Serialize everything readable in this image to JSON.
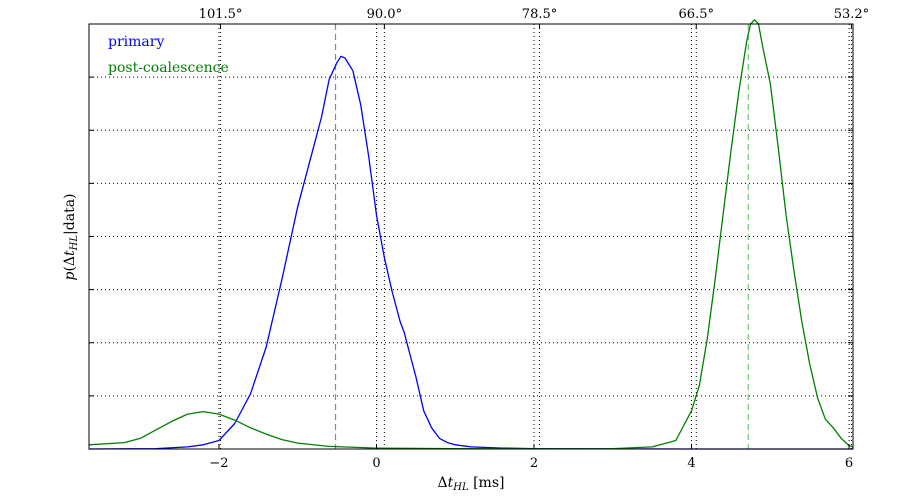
{
  "chart_data": {
    "type": "line",
    "xlabel": "Δt_HL [ms]",
    "ylabel": "p(Δt_HL|data)",
    "xlim": [
      -3.65,
      6.05
    ],
    "ylim": [
      0,
      1.0
    ],
    "x_ticks": [
      -2,
      0,
      2,
      4,
      6
    ],
    "x_tick_labels": [
      "−2",
      "0",
      "2",
      "4",
      "6"
    ],
    "y_ticks": [
      0.125,
      0.25,
      0.375,
      0.5,
      0.625,
      0.75,
      0.875
    ],
    "secondary_x_ticks": [
      {
        "x": -1.98,
        "label": "101.5°"
      },
      {
        "x": 0.1,
        "label": "90.0°"
      },
      {
        "x": 2.07,
        "label": "78.5°"
      },
      {
        "x": 4.06,
        "label": "66.5°"
      },
      {
        "x": 6.03,
        "label": "53.2°"
      }
    ],
    "grid": true,
    "legend_position": "top-left",
    "series": [
      {
        "name": "primary",
        "color": "#0000ff",
        "marker_x": -0.52,
        "points": [
          [
            -3.65,
            0
          ],
          [
            -2.8,
            0.001
          ],
          [
            -2.4,
            0.005
          ],
          [
            -2.2,
            0.01
          ],
          [
            -2.0,
            0.02
          ],
          [
            -1.8,
            0.06
          ],
          [
            -1.6,
            0.13
          ],
          [
            -1.4,
            0.24
          ],
          [
            -1.2,
            0.4
          ],
          [
            -1.0,
            0.57
          ],
          [
            -0.8,
            0.71
          ],
          [
            -0.7,
            0.78
          ],
          [
            -0.6,
            0.87
          ],
          [
            -0.5,
            0.91
          ],
          [
            -0.45,
            0.924
          ],
          [
            -0.4,
            0.92
          ],
          [
            -0.3,
            0.89
          ],
          [
            -0.2,
            0.81
          ],
          [
            -0.1,
            0.69
          ],
          [
            0.0,
            0.55
          ],
          [
            0.1,
            0.45
          ],
          [
            0.2,
            0.37
          ],
          [
            0.3,
            0.3
          ],
          [
            0.35,
            0.275
          ],
          [
            0.4,
            0.24
          ],
          [
            0.5,
            0.17
          ],
          [
            0.6,
            0.09
          ],
          [
            0.7,
            0.05
          ],
          [
            0.8,
            0.025
          ],
          [
            0.9,
            0.015
          ],
          [
            1.0,
            0.01
          ],
          [
            1.2,
            0.005
          ],
          [
            1.6,
            0.002
          ],
          [
            2.0,
            0.001
          ],
          [
            4.0,
            0
          ],
          [
            6.05,
            0
          ]
        ]
      },
      {
        "name": "post-coalescence",
        "color": "#008000",
        "marker_x": 4.72,
        "points": [
          [
            -3.65,
            0.01
          ],
          [
            -3.2,
            0.015
          ],
          [
            -3.0,
            0.025
          ],
          [
            -2.8,
            0.045
          ],
          [
            -2.6,
            0.065
          ],
          [
            -2.4,
            0.082
          ],
          [
            -2.2,
            0.088
          ],
          [
            -2.0,
            0.082
          ],
          [
            -1.8,
            0.068
          ],
          [
            -1.6,
            0.05
          ],
          [
            -1.4,
            0.035
          ],
          [
            -1.2,
            0.022
          ],
          [
            -1.0,
            0.014
          ],
          [
            -0.6,
            0.006
          ],
          [
            0.0,
            0.002
          ],
          [
            1.0,
            0.001
          ],
          [
            2.0,
            0.0005
          ],
          [
            3.0,
            0.001
          ],
          [
            3.5,
            0.005
          ],
          [
            3.8,
            0.02
          ],
          [
            4.0,
            0.09
          ],
          [
            4.1,
            0.15
          ],
          [
            4.2,
            0.26
          ],
          [
            4.3,
            0.4
          ],
          [
            4.4,
            0.55
          ],
          [
            4.5,
            0.7
          ],
          [
            4.6,
            0.84
          ],
          [
            4.7,
            0.96
          ],
          [
            4.75,
            1.0
          ],
          [
            4.8,
            1.01
          ],
          [
            4.85,
            1.0
          ],
          [
            4.9,
            0.95
          ],
          [
            5.0,
            0.86
          ],
          [
            5.1,
            0.71
          ],
          [
            5.2,
            0.55
          ],
          [
            5.3,
            0.42
          ],
          [
            5.4,
            0.3
          ],
          [
            5.5,
            0.2
          ],
          [
            5.6,
            0.12
          ],
          [
            5.7,
            0.07
          ],
          [
            5.8,
            0.05
          ],
          [
            5.9,
            0.025
          ],
          [
            6.0,
            0.008
          ],
          [
            6.05,
            0.005
          ]
        ]
      }
    ]
  }
}
